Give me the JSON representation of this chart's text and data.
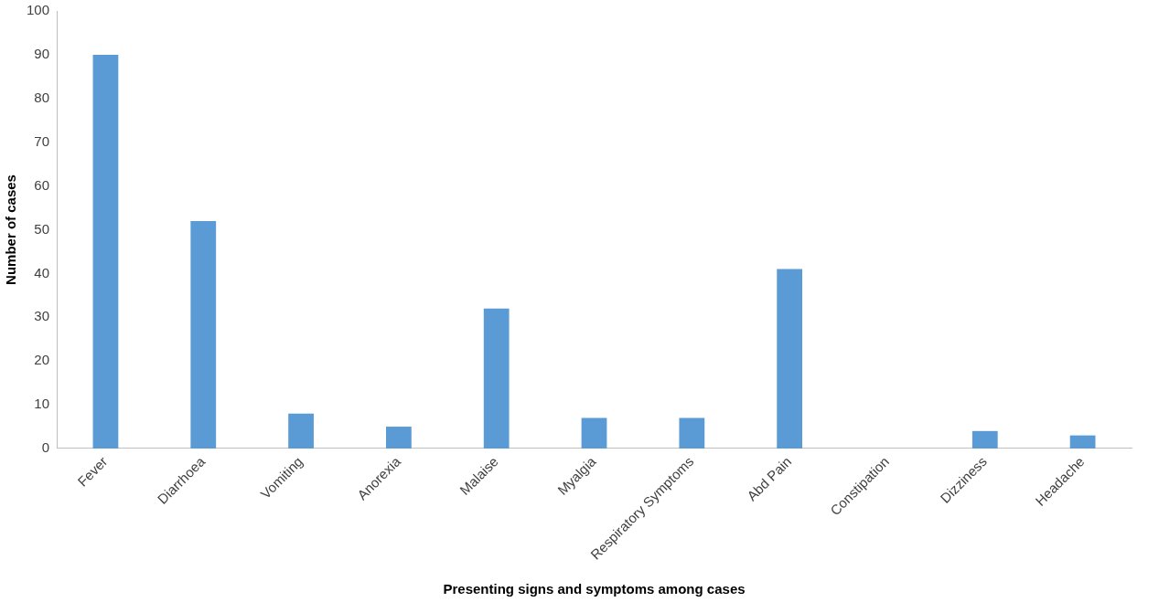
{
  "chart_data": {
    "type": "bar",
    "xlabel": "Presenting signs and symptoms among cases",
    "ylabel": "Number of cases",
    "categories": [
      "Fever",
      "Diarrhoea",
      "Vomiting",
      "Anorexia",
      "Malaise",
      "Myalgia",
      "Respiratory Symptoms",
      "Abd Pain",
      "Constipation",
      "Dizziness",
      "Headache"
    ],
    "values": [
      90,
      52,
      8,
      5,
      32,
      7,
      7,
      41,
      0,
      4,
      3
    ],
    "color": "#5b9bd5",
    "ylim": [
      0,
      100
    ],
    "yticks": [
      0,
      10,
      20,
      30,
      40,
      50,
      60,
      70,
      80,
      90,
      100
    ],
    "grid": false,
    "legend": false
  }
}
